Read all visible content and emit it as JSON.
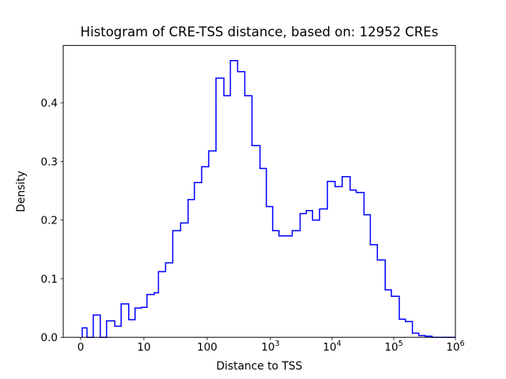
{
  "figure": {
    "title": "Histogram of CRE-TSS distance, based on: 12952 CREs",
    "xlabel": "Distance to TSS",
    "ylabel": "Density"
  },
  "chart_data": {
    "type": "bar",
    "subtype": "step-histogram",
    "title": "Histogram of CRE-TSS distance, based on: 12952 CREs",
    "xlabel": "Distance to TSS",
    "ylabel": "Density",
    "n_cres": 12952,
    "x_scale": "symlog",
    "grid": false,
    "legend": "none",
    "line_color": "#0000ff",
    "x_ticks": [
      {
        "text": "0",
        "exp": null,
        "value": 0
      },
      {
        "text": "10",
        "exp": null,
        "value": 10
      },
      {
        "text": "100",
        "exp": null,
        "value": 100
      },
      {
        "text": "10",
        "exp": "3",
        "value": 1000
      },
      {
        "text": "10",
        "exp": "4",
        "value": 10000
      },
      {
        "text": "10",
        "exp": "5",
        "value": 100000
      },
      {
        "text": "10",
        "exp": "6",
        "value": 1000000
      }
    ],
    "y_ticks": [
      {
        "label": "0.0",
        "value": 0.0
      },
      {
        "label": "0.1",
        "value": 0.1
      },
      {
        "label": "0.2",
        "value": 0.2
      },
      {
        "label": "0.3",
        "value": 0.3
      },
      {
        "label": "0.4",
        "value": 0.4
      }
    ],
    "ylim": [
      0,
      0.497
    ],
    "xlim_values": [
      0,
      1000000
    ],
    "bin_edges": [
      0.25,
      1,
      2,
      3.1,
      4.1,
      5.4,
      6.4,
      7.6,
      8.6,
      9.6,
      11.2,
      14.6,
      17,
      22,
      28.6,
      38,
      50,
      63,
      82,
      106,
      138,
      184,
      233,
      303,
      393,
      512,
      685,
      864,
      1090,
      1380,
      2260,
      3030,
      3820,
      4830,
      6270,
      8400,
      11200,
      14600,
      19600,
      24700,
      33000,
      41700,
      54200,
      72600,
      91600,
      123000,
      155000,
      201000,
      254000,
      321000,
      417000
    ],
    "densities": [
      0.016,
      0,
      0.038,
      0,
      0.028,
      0.019,
      0.057,
      0.03,
      0.05,
      0.051,
      0.073,
      0.076,
      0.112,
      0.127,
      0.182,
      0.195,
      0.235,
      0.264,
      0.291,
      0.318,
      0.442,
      0.412,
      0.472,
      0.453,
      0.412,
      0.327,
      0.288,
      0.223,
      0.182,
      0.173,
      0.182,
      0.211,
      0.216,
      0.2,
      0.219,
      0.266,
      0.257,
      0.274,
      0.251,
      0.247,
      0.209,
      0.158,
      0.132,
      0.081,
      0.07,
      0.031,
      0.027,
      0.007,
      0.003,
      0.002
    ]
  }
}
